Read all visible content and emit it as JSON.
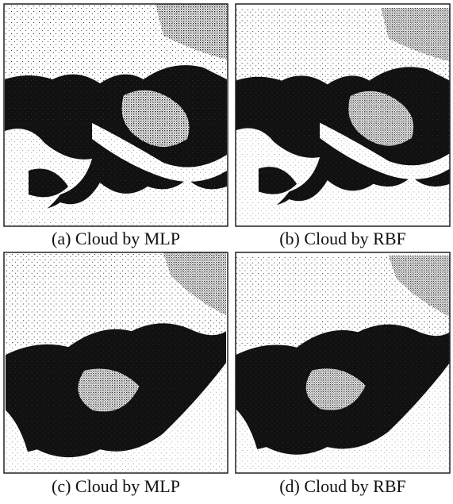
{
  "figure": {
    "panels": [
      {
        "caption": "(a) Cloud by MLP"
      },
      {
        "caption": "(b) Cloud by RBF"
      },
      {
        "caption": "(c) Cloud by MLP"
      },
      {
        "caption": "(d) Cloud by RBF"
      }
    ]
  }
}
